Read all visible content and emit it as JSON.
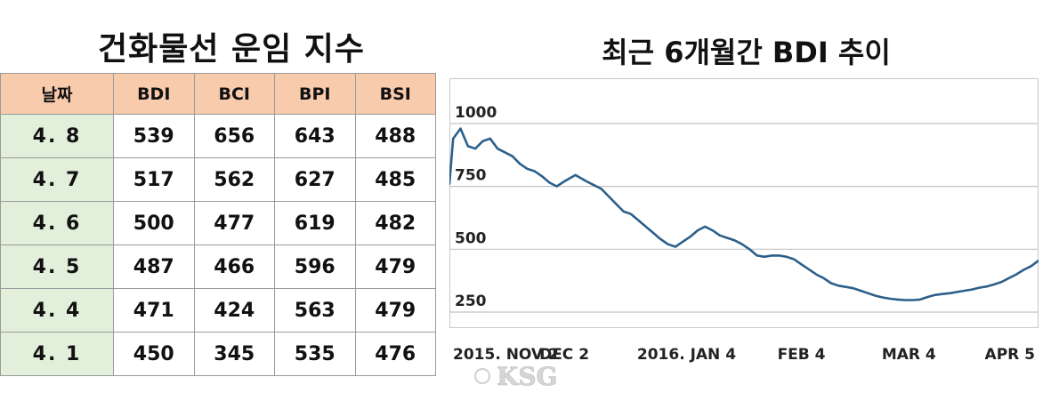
{
  "table": {
    "title": "건화물선 운임 지수",
    "headers": [
      "날짜",
      "BDI",
      "BCI",
      "BPI",
      "BSI"
    ],
    "rows": [
      {
        "date": "4. 8",
        "values": [
          "539",
          "656",
          "643",
          "488"
        ]
      },
      {
        "date": "4. 7",
        "values": [
          "517",
          "562",
          "627",
          "485"
        ]
      },
      {
        "date": "4. 6",
        "values": [
          "500",
          "477",
          "619",
          "482"
        ]
      },
      {
        "date": "4. 5",
        "values": [
          "487",
          "466",
          "596",
          "479"
        ]
      },
      {
        "date": "4. 4",
        "values": [
          "471",
          "424",
          "563",
          "479"
        ]
      },
      {
        "date": "4. 1",
        "values": [
          "450",
          "345",
          "535",
          "476"
        ]
      }
    ]
  },
  "chart_data": {
    "type": "line",
    "title": "최근 6개월간 BDI 추이",
    "xlabel": "",
    "ylabel": "",
    "yticks": [
      250,
      500,
      750,
      1000
    ],
    "ylim": [
      190,
      1180
    ],
    "xticks": [
      {
        "label": "2015. NOV 2",
        "x": 0
      },
      {
        "label": "DEC 2",
        "x": 30
      },
      {
        "label": "2016. JAN 4",
        "x": 63
      },
      {
        "label": "FEB 4",
        "x": 94
      },
      {
        "label": "MAR 4",
        "x": 123
      },
      {
        "label": "APR 5",
        "x": 155
      }
    ],
    "xlim": [
      -1,
      158
    ],
    "grid": true,
    "legend": "none",
    "line_color": "#2c5f8a",
    "series": [
      {
        "x": [
          -1,
          0,
          2,
          4,
          6,
          8,
          10,
          12,
          14,
          16,
          18,
          20,
          22,
          24,
          26,
          28,
          30,
          33,
          36,
          38,
          40,
          42,
          44,
          46,
          48,
          50,
          52,
          54,
          56,
          58,
          60,
          62,
          64,
          66,
          68,
          70,
          72,
          74,
          76,
          78,
          80,
          82,
          84,
          86,
          88,
          90,
          92,
          94,
          96,
          98,
          100,
          102,
          104,
          106,
          108,
          110,
          112,
          114,
          116,
          118,
          120,
          122,
          124,
          126,
          128,
          130,
          132,
          134,
          136,
          138,
          140,
          142,
          144,
          146,
          148,
          150,
          152,
          154,
          156,
          158
        ],
        "y": [
          760,
          940,
          980,
          910,
          900,
          930,
          940,
          900,
          885,
          870,
          840,
          820,
          810,
          790,
          765,
          750,
          770,
          795,
          770,
          755,
          740,
          710,
          680,
          650,
          640,
          615,
          590,
          565,
          540,
          520,
          510,
          530,
          550,
          575,
          590,
          575,
          555,
          545,
          535,
          520,
          500,
          475,
          470,
          475,
          475,
          470,
          460,
          440,
          420,
          400,
          385,
          365,
          355,
          350,
          345,
          335,
          325,
          315,
          308,
          303,
          300,
          298,
          298,
          300,
          310,
          318,
          322,
          325,
          330,
          335,
          340,
          347,
          352,
          360,
          370,
          385,
          400,
          418,
          433,
          455
        ]
      }
    ]
  },
  "watermark": {
    "text": "KSG"
  }
}
